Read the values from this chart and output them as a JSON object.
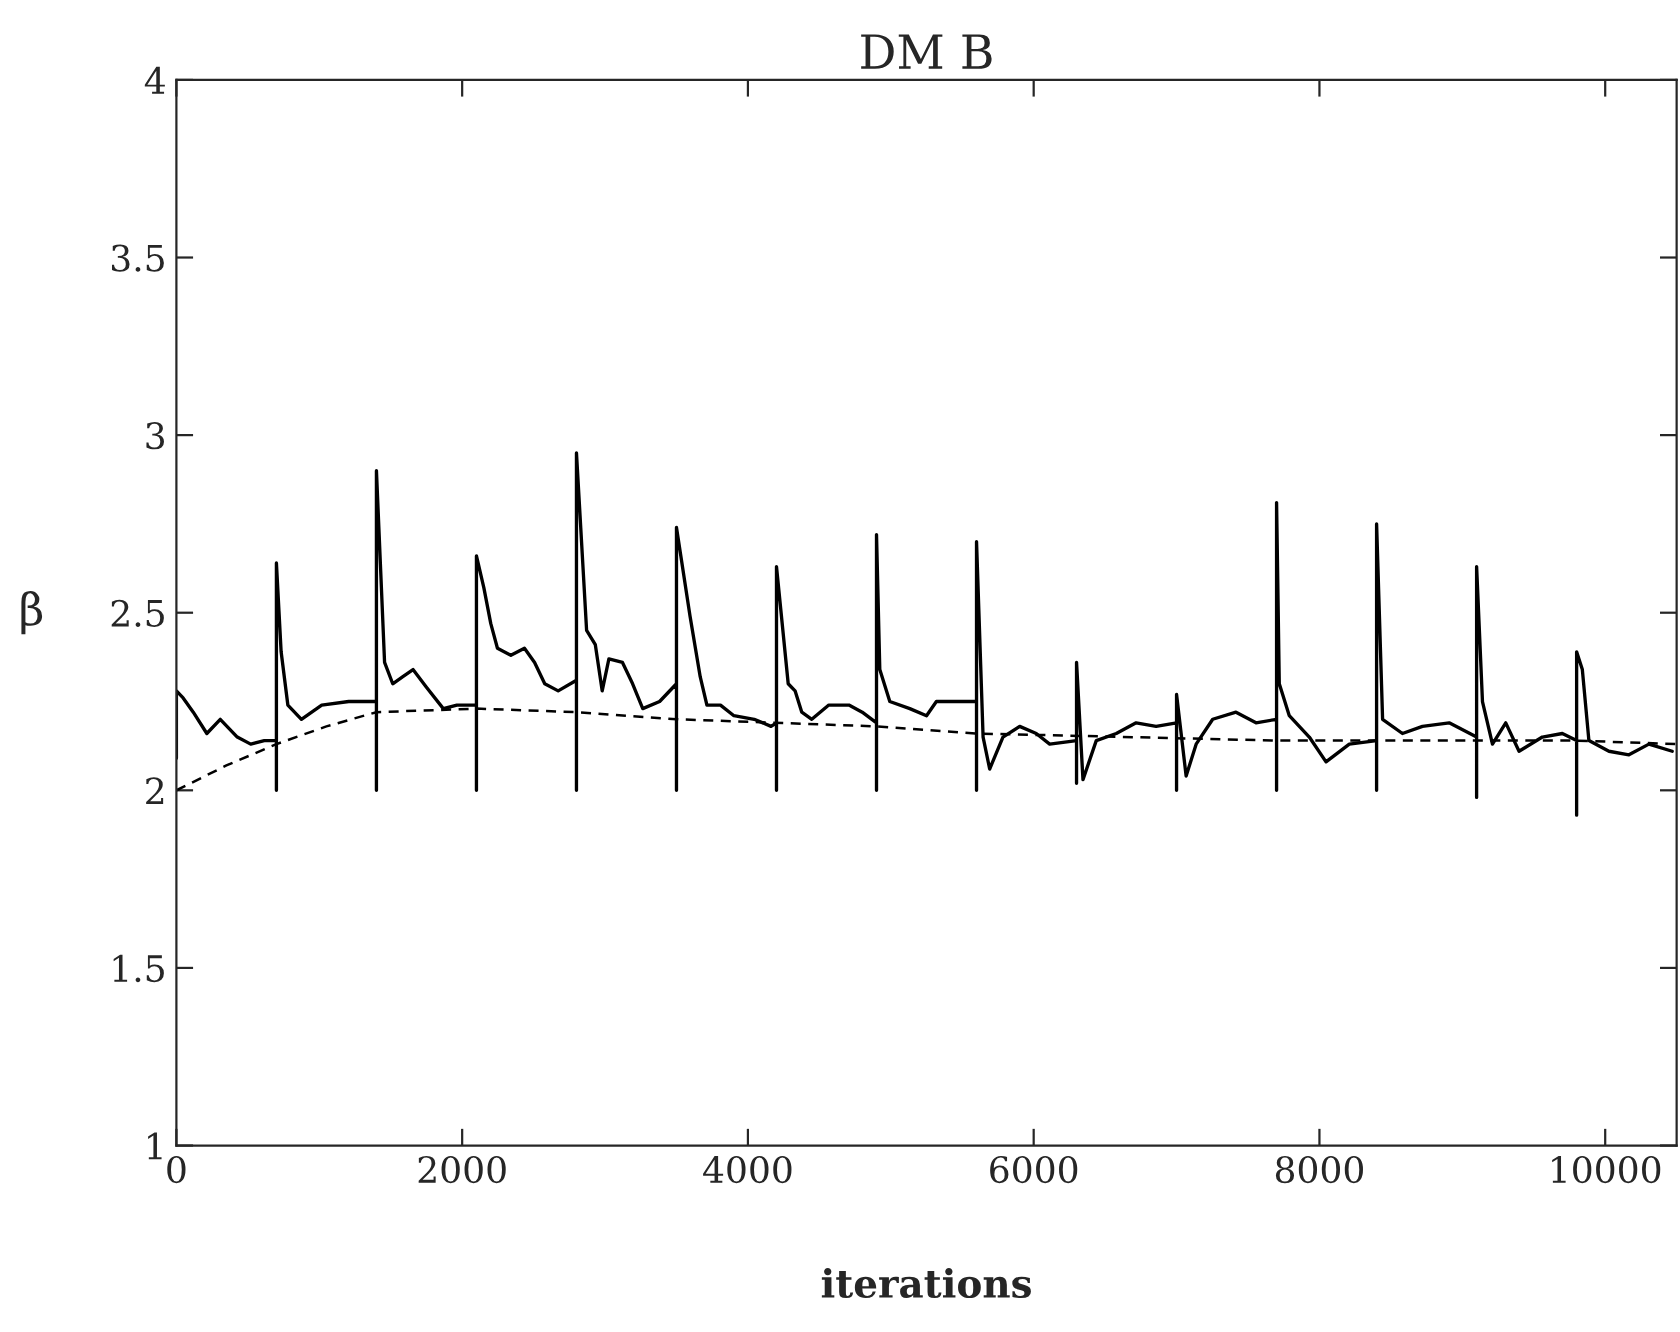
{
  "chart_data": {
    "type": "line",
    "title": "DM B",
    "xlabel": "iterations",
    "ylabel": "β",
    "xlim": [
      0,
      10500
    ],
    "xticks": [
      0,
      2000,
      4000,
      6000,
      8000,
      10000
    ],
    "ylim": [
      1,
      4
    ],
    "yticks": [
      1,
      1.5,
      2,
      2.5,
      3,
      3.5,
      4
    ],
    "grid": false,
    "legend": false,
    "series": [
      {
        "color": "#000000",
        "line_style": "solid",
        "x": [
          0,
          0,
          47,
          118,
          213,
          307,
          426,
          520,
          615,
          700,
          700,
          700,
          733,
          780,
          875,
          1017,
          1206,
          1400,
          1400,
          1400,
          1457,
          1514,
          1585,
          1656,
          1750,
          1868,
          1963,
          2100,
          2100,
          2100,
          2152,
          2200,
          2247,
          2341,
          2436,
          2507,
          2578,
          2672,
          2800,
          2800,
          2800,
          2871,
          2932,
          2980,
          3027,
          3122,
          3193,
          3264,
          3382,
          3500,
          3500,
          3500,
          3595,
          3666,
          3713,
          3808,
          3902,
          4044,
          4162,
          4200,
          4200,
          4200,
          4282,
          4330,
          4377,
          4447,
          4566,
          4707,
          4800,
          4900,
          4900,
          4900,
          4923,
          4993,
          5133,
          5250,
          5319,
          5600,
          5600,
          5600,
          5646,
          5692,
          5785,
          5902,
          6018,
          6112,
          6300,
          6300,
          6300,
          6345,
          6438,
          6578,
          6717,
          6857,
          7000,
          7000,
          7000,
          7067,
          7137,
          7253,
          7416,
          7556,
          7700,
          7700,
          7700,
          7719,
          7789,
          7929,
          8046,
          8209,
          8400,
          8400,
          8400,
          8442,
          8581,
          8721,
          8908,
          9100,
          9100,
          9100,
          9141,
          9211,
          9304,
          9397,
          9560,
          9700,
          9800,
          9800,
          9800,
          9840,
          9886,
          10026,
          10166,
          10306,
          10469
        ],
        "values": [
          2.09,
          2.28,
          2.26,
          2.22,
          2.16,
          2.2,
          2.15,
          2.13,
          2.14,
          2.14,
          2.0,
          2.64,
          2.39,
          2.24,
          2.2,
          2.24,
          2.25,
          2.25,
          2.0,
          2.9,
          2.36,
          2.3,
          2.32,
          2.34,
          2.29,
          2.23,
          2.24,
          2.24,
          2.0,
          2.66,
          2.57,
          2.47,
          2.4,
          2.38,
          2.4,
          2.36,
          2.3,
          2.28,
          2.31,
          2.0,
          2.95,
          2.45,
          2.41,
          2.28,
          2.37,
          2.36,
          2.3,
          2.23,
          2.25,
          2.3,
          2.0,
          2.74,
          2.49,
          2.32,
          2.24,
          2.24,
          2.21,
          2.2,
          2.18,
          2.19,
          2.0,
          2.63,
          2.3,
          2.28,
          2.22,
          2.2,
          2.24,
          2.24,
          2.22,
          2.19,
          2.0,
          2.72,
          2.34,
          2.25,
          2.23,
          2.21,
          2.25,
          2.25,
          2.0,
          2.7,
          2.15,
          2.06,
          2.15,
          2.18,
          2.16,
          2.13,
          2.14,
          2.02,
          2.36,
          2.03,
          2.14,
          2.16,
          2.19,
          2.18,
          2.19,
          2.0,
          2.27,
          2.04,
          2.13,
          2.2,
          2.22,
          2.19,
          2.2,
          2.0,
          2.81,
          2.3,
          2.21,
          2.15,
          2.08,
          2.13,
          2.14,
          2.0,
          2.75,
          2.2,
          2.16,
          2.18,
          2.19,
          2.15,
          1.98,
          2.63,
          2.25,
          2.13,
          2.19,
          2.11,
          2.15,
          2.16,
          2.14,
          1.93,
          2.39,
          2.34,
          2.14,
          2.11,
          2.1,
          2.13,
          2.11
        ]
      },
      {
        "color": "#000000",
        "line_style": "dashed",
        "x": [
          0,
          350,
          700,
          1050,
          1400,
          2100,
          2800,
          3500,
          4900,
          5600,
          7700,
          9800,
          10500
        ],
        "values": [
          2.0,
          2.07,
          2.13,
          2.18,
          2.22,
          2.23,
          2.22,
          2.2,
          2.18,
          2.16,
          2.14,
          2.14,
          2.13
        ]
      }
    ]
  }
}
